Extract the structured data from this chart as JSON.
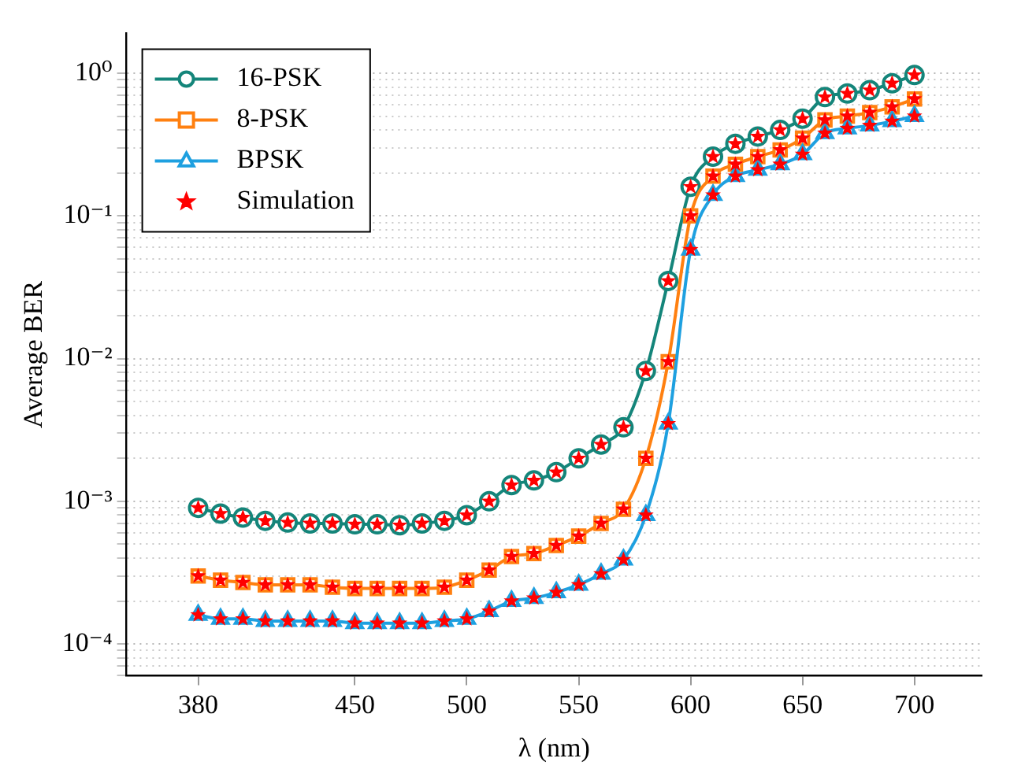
{
  "chart_data": {
    "type": "line",
    "xlabel": "λ (nm)",
    "ylabel": "Average BER",
    "x": [
      380,
      390,
      400,
      410,
      420,
      430,
      440,
      450,
      460,
      470,
      480,
      490,
      500,
      510,
      520,
      530,
      540,
      550,
      560,
      570,
      580,
      590,
      600,
      610,
      620,
      630,
      640,
      650,
      660,
      670,
      680,
      690,
      700
    ],
    "series": [
      {
        "name": "16-PSK",
        "color": "#14857a",
        "marker": "circle",
        "values": [
          0.0009,
          0.00082,
          0.00077,
          0.00073,
          0.00071,
          0.0007,
          0.0007,
          0.00069,
          0.00069,
          0.00068,
          0.0007,
          0.00073,
          0.0008,
          0.001,
          0.0013,
          0.0014,
          0.0016,
          0.002,
          0.0025,
          0.0033,
          0.0082,
          0.035,
          0.16,
          0.26,
          0.32,
          0.36,
          0.4,
          0.48,
          0.68,
          0.72,
          0.76,
          0.85,
          0.97
        ]
      },
      {
        "name": "8-PSK",
        "color": "#ff8010",
        "marker": "square",
        "values": [
          0.0003,
          0.00028,
          0.00027,
          0.00026,
          0.00026,
          0.00026,
          0.00025,
          0.000245,
          0.000245,
          0.000245,
          0.000245,
          0.00025,
          0.00028,
          0.00033,
          0.00041,
          0.00043,
          0.00049,
          0.00057,
          0.0007,
          0.00088,
          0.002,
          0.0095,
          0.1,
          0.19,
          0.23,
          0.26,
          0.29,
          0.35,
          0.47,
          0.5,
          0.53,
          0.58,
          0.66
        ]
      },
      {
        "name": "BPSK",
        "color": "#1ea0e0",
        "marker": "triangle",
        "values": [
          0.00016,
          0.00015,
          0.00015,
          0.000145,
          0.000145,
          0.000145,
          0.000145,
          0.00014,
          0.00014,
          0.00014,
          0.00014,
          0.000145,
          0.00015,
          0.00017,
          0.0002,
          0.00021,
          0.00023,
          0.00026,
          0.00031,
          0.00039,
          0.0008,
          0.0035,
          0.058,
          0.14,
          0.19,
          0.21,
          0.23,
          0.27,
          0.38,
          0.41,
          0.43,
          0.46,
          0.5
        ]
      },
      {
        "name": "Simulation",
        "type": "scatter",
        "color": "#ff0000",
        "marker": "star",
        "x": [
          380,
          390,
          400,
          410,
          420,
          430,
          440,
          450,
          460,
          470,
          480,
          490,
          500,
          510,
          520,
          530,
          540,
          550,
          560,
          570,
          580,
          590,
          600,
          610,
          620,
          630,
          640,
          650,
          660,
          670,
          680,
          690,
          700,
          380,
          390,
          400,
          410,
          420,
          430,
          440,
          450,
          460,
          470,
          480,
          490,
          500,
          510,
          520,
          530,
          540,
          550,
          560,
          570,
          580,
          590,
          600,
          610,
          620,
          630,
          640,
          650,
          660,
          670,
          680,
          690,
          700,
          380,
          390,
          400,
          410,
          420,
          430,
          440,
          450,
          460,
          470,
          480,
          490,
          500,
          510,
          520,
          530,
          540,
          550,
          560,
          570,
          580,
          590,
          600,
          610,
          620,
          630,
          640,
          650,
          660,
          670,
          680,
          690,
          700
        ],
        "values": [
          0.0009,
          0.00082,
          0.00077,
          0.00073,
          0.00071,
          0.0007,
          0.0007,
          0.00069,
          0.00069,
          0.00068,
          0.0007,
          0.00073,
          0.0008,
          0.001,
          0.0013,
          0.0014,
          0.0016,
          0.002,
          0.0025,
          0.0033,
          0.0082,
          0.035,
          0.16,
          0.26,
          0.32,
          0.36,
          0.4,
          0.48,
          0.68,
          0.72,
          0.76,
          0.85,
          0.97,
          0.0003,
          0.00028,
          0.00027,
          0.00026,
          0.00026,
          0.00026,
          0.00025,
          0.000245,
          0.000245,
          0.000245,
          0.000245,
          0.00025,
          0.00028,
          0.00033,
          0.00041,
          0.00043,
          0.00049,
          0.00057,
          0.0007,
          0.00088,
          0.002,
          0.0095,
          0.1,
          0.19,
          0.23,
          0.26,
          0.29,
          0.35,
          0.47,
          0.5,
          0.53,
          0.58,
          0.66,
          0.00016,
          0.00015,
          0.00015,
          0.000145,
          0.000145,
          0.000145,
          0.000145,
          0.00014,
          0.00014,
          0.00014,
          0.00014,
          0.000145,
          0.00015,
          0.00017,
          0.0002,
          0.00021,
          0.00023,
          0.00026,
          0.00031,
          0.00039,
          0.0008,
          0.0035,
          0.058,
          0.14,
          0.19,
          0.21,
          0.23,
          0.27,
          0.38,
          0.41,
          0.43,
          0.46,
          0.5
        ]
      }
    ],
    "xlim": [
      348,
      730
    ],
    "xticks": [
      380,
      450,
      500,
      550,
      600,
      650,
      700
    ],
    "ylim": [
      6e-05,
      1.9
    ],
    "yticks": [
      {
        "value": 0.0001,
        "label": "10⁻⁴"
      },
      {
        "value": 0.001,
        "label": "10⁻³"
      },
      {
        "value": 0.01,
        "label": "10⁻²"
      },
      {
        "value": 0.1,
        "label": "10⁻¹"
      },
      {
        "value": 1,
        "label": "10⁰"
      }
    ],
    "log": "y",
    "grid": "y",
    "legend": "top left",
    "line_style": "solid"
  }
}
